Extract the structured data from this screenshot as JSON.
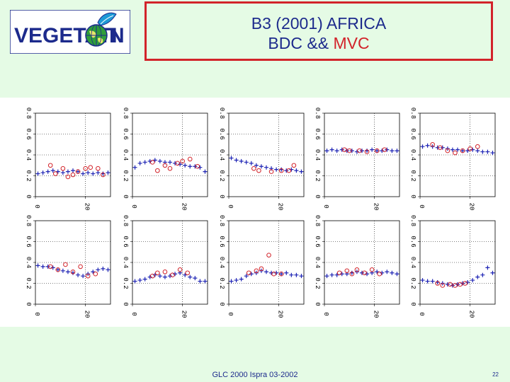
{
  "logo": {
    "text_left": "VEGETATI",
    "text_right": "N"
  },
  "header": {
    "title_line1": "B3 (2001) AFRICA",
    "title_line2_prefix": "BDC && ",
    "title_line2_highlight": "MVC"
  },
  "footer": {
    "left": "GLC 2000 Ispra 03-2002",
    "page_number": "22"
  },
  "colors": {
    "bdc": "#1c22b4",
    "mvc": "#d2232a",
    "title": "#1c2a8c",
    "background": "#e5fbe5"
  },
  "chart_data": {
    "type": "scatter",
    "layout": "2 rows x 5 columns of small panels",
    "y_ticks": [
      "0",
      "0.2",
      "0.4",
      "0.6",
      "0.8"
    ],
    "x_ticks": [
      "0",
      "20"
    ],
    "ylim": [
      0,
      0.8
    ],
    "xlim": [
      0,
      30
    ],
    "series_names": [
      "BDC",
      "MVC"
    ],
    "panels": [
      {
        "bdc": [
          [
            1,
            0.22
          ],
          [
            3,
            0.23
          ],
          [
            5,
            0.24
          ],
          [
            7,
            0.25
          ],
          [
            9,
            0.24
          ],
          [
            11,
            0.23
          ],
          [
            13,
            0.24
          ],
          [
            15,
            0.25
          ],
          [
            17,
            0.24
          ],
          [
            19,
            0.22
          ],
          [
            21,
            0.23
          ],
          [
            23,
            0.22
          ],
          [
            25,
            0.23
          ],
          [
            27,
            0.22
          ],
          [
            29,
            0.23
          ]
        ],
        "mvc": [
          [
            6,
            0.3
          ],
          [
            8,
            0.22
          ],
          [
            11,
            0.27
          ],
          [
            13,
            0.19
          ],
          [
            15,
            0.21
          ],
          [
            17,
            0.24
          ],
          [
            20,
            0.27
          ],
          [
            22,
            0.28
          ],
          [
            25,
            0.27
          ],
          [
            27,
            0.21
          ]
        ]
      },
      {
        "bdc": [
          [
            1,
            0.28
          ],
          [
            3,
            0.32
          ],
          [
            5,
            0.33
          ],
          [
            7,
            0.34
          ],
          [
            9,
            0.35
          ],
          [
            11,
            0.34
          ],
          [
            13,
            0.33
          ],
          [
            15,
            0.33
          ],
          [
            17,
            0.32
          ],
          [
            19,
            0.31
          ],
          [
            21,
            0.3
          ],
          [
            23,
            0.29
          ],
          [
            25,
            0.29
          ],
          [
            27,
            0.28
          ],
          [
            29,
            0.24
          ]
        ],
        "mvc": [
          [
            8,
            0.33
          ],
          [
            10,
            0.25
          ],
          [
            13,
            0.3
          ],
          [
            15,
            0.27
          ],
          [
            18,
            0.32
          ],
          [
            20,
            0.34
          ],
          [
            23,
            0.36
          ],
          [
            26,
            0.29
          ]
        ]
      },
      {
        "bdc": [
          [
            1,
            0.37
          ],
          [
            3,
            0.35
          ],
          [
            5,
            0.34
          ],
          [
            7,
            0.33
          ],
          [
            9,
            0.32
          ],
          [
            11,
            0.3
          ],
          [
            13,
            0.29
          ],
          [
            15,
            0.28
          ],
          [
            17,
            0.27
          ],
          [
            19,
            0.26
          ],
          [
            21,
            0.26
          ],
          [
            23,
            0.25
          ],
          [
            25,
            0.26
          ],
          [
            27,
            0.25
          ],
          [
            29,
            0.24
          ]
        ],
        "mvc": [
          [
            10,
            0.27
          ],
          [
            12,
            0.25
          ],
          [
            17,
            0.24
          ],
          [
            21,
            0.25
          ],
          [
            24,
            0.25
          ],
          [
            26,
            0.3
          ]
        ]
      },
      {
        "bdc": [
          [
            1,
            0.44
          ],
          [
            3,
            0.45
          ],
          [
            5,
            0.44
          ],
          [
            7,
            0.45
          ],
          [
            9,
            0.44
          ],
          [
            11,
            0.44
          ],
          [
            13,
            0.43
          ],
          [
            15,
            0.44
          ],
          [
            17,
            0.44
          ],
          [
            19,
            0.45
          ],
          [
            21,
            0.44
          ],
          [
            23,
            0.44
          ],
          [
            25,
            0.45
          ],
          [
            27,
            0.44
          ],
          [
            29,
            0.44
          ]
        ],
        "mvc": [
          [
            8,
            0.45
          ],
          [
            10,
            0.44
          ],
          [
            14,
            0.44
          ],
          [
            17,
            0.43
          ],
          [
            21,
            0.44
          ],
          [
            24,
            0.45
          ]
        ]
      },
      {
        "bdc": [
          [
            1,
            0.48
          ],
          [
            3,
            0.49
          ],
          [
            5,
            0.48
          ],
          [
            7,
            0.47
          ],
          [
            9,
            0.47
          ],
          [
            11,
            0.46
          ],
          [
            13,
            0.45
          ],
          [
            15,
            0.45
          ],
          [
            17,
            0.44
          ],
          [
            19,
            0.44
          ],
          [
            21,
            0.45
          ],
          [
            23,
            0.44
          ],
          [
            25,
            0.43
          ],
          [
            27,
            0.43
          ],
          [
            29,
            0.42
          ]
        ],
        "mvc": [
          [
            5,
            0.5
          ],
          [
            8,
            0.47
          ],
          [
            11,
            0.44
          ],
          [
            14,
            0.42
          ],
          [
            17,
            0.44
          ],
          [
            20,
            0.46
          ],
          [
            23,
            0.48
          ]
        ]
      },
      {
        "bdc": [
          [
            1,
            0.37
          ],
          [
            3,
            0.36
          ],
          [
            5,
            0.36
          ],
          [
            7,
            0.35
          ],
          [
            9,
            0.33
          ],
          [
            11,
            0.32
          ],
          [
            13,
            0.31
          ],
          [
            15,
            0.3
          ],
          [
            17,
            0.28
          ],
          [
            19,
            0.27
          ],
          [
            21,
            0.29
          ],
          [
            23,
            0.31
          ],
          [
            25,
            0.33
          ],
          [
            27,
            0.34
          ],
          [
            29,
            0.33
          ]
        ],
        "mvc": [
          [
            6,
            0.36
          ],
          [
            9,
            0.33
          ],
          [
            12,
            0.38
          ],
          [
            15,
            0.31
          ],
          [
            18,
            0.36
          ],
          [
            21,
            0.27
          ],
          [
            24,
            0.29
          ]
        ]
      },
      {
        "bdc": [
          [
            1,
            0.22
          ],
          [
            3,
            0.23
          ],
          [
            5,
            0.24
          ],
          [
            7,
            0.26
          ],
          [
            9,
            0.28
          ],
          [
            11,
            0.27
          ],
          [
            13,
            0.26
          ],
          [
            15,
            0.27
          ],
          [
            17,
            0.29
          ],
          [
            19,
            0.3
          ],
          [
            21,
            0.28
          ],
          [
            23,
            0.26
          ],
          [
            25,
            0.25
          ],
          [
            27,
            0.22
          ],
          [
            29,
            0.22
          ]
        ],
        "mvc": [
          [
            8,
            0.27
          ],
          [
            10,
            0.3
          ],
          [
            13,
            0.31
          ],
          [
            16,
            0.28
          ],
          [
            19,
            0.33
          ],
          [
            22,
            0.3
          ]
        ]
      },
      {
        "bdc": [
          [
            1,
            0.22
          ],
          [
            3,
            0.23
          ],
          [
            5,
            0.24
          ],
          [
            7,
            0.27
          ],
          [
            9,
            0.29
          ],
          [
            11,
            0.3
          ],
          [
            13,
            0.32
          ],
          [
            15,
            0.31
          ],
          [
            17,
            0.3
          ],
          [
            19,
            0.3
          ],
          [
            21,
            0.29
          ],
          [
            23,
            0.3
          ],
          [
            25,
            0.28
          ],
          [
            27,
            0.28
          ],
          [
            29,
            0.27
          ]
        ],
        "mvc": [
          [
            8,
            0.3
          ],
          [
            11,
            0.32
          ],
          [
            13,
            0.34
          ],
          [
            16,
            0.47
          ],
          [
            18,
            0.29
          ],
          [
            21,
            0.29
          ]
        ]
      },
      {
        "bdc": [
          [
            1,
            0.27
          ],
          [
            3,
            0.28
          ],
          [
            5,
            0.28
          ],
          [
            7,
            0.29
          ],
          [
            9,
            0.29
          ],
          [
            11,
            0.3
          ],
          [
            13,
            0.31
          ],
          [
            15,
            0.3
          ],
          [
            17,
            0.29
          ],
          [
            19,
            0.3
          ],
          [
            21,
            0.31
          ],
          [
            23,
            0.3
          ],
          [
            25,
            0.31
          ],
          [
            27,
            0.3
          ],
          [
            29,
            0.29
          ]
        ],
        "mvc": [
          [
            6,
            0.3
          ],
          [
            9,
            0.32
          ],
          [
            11,
            0.29
          ],
          [
            13,
            0.33
          ],
          [
            16,
            0.3
          ],
          [
            19,
            0.33
          ],
          [
            22,
            0.29
          ]
        ]
      },
      {
        "bdc": [
          [
            1,
            0.23
          ],
          [
            3,
            0.22
          ],
          [
            5,
            0.22
          ],
          [
            7,
            0.21
          ],
          [
            9,
            0.2
          ],
          [
            11,
            0.19
          ],
          [
            13,
            0.18
          ],
          [
            15,
            0.19
          ],
          [
            17,
            0.2
          ],
          [
            19,
            0.21
          ],
          [
            21,
            0.23
          ],
          [
            23,
            0.26
          ],
          [
            25,
            0.28
          ],
          [
            27,
            0.35
          ],
          [
            29,
            0.3
          ]
        ],
        "mvc": [
          [
            7,
            0.2
          ],
          [
            9,
            0.18
          ],
          [
            12,
            0.19
          ],
          [
            14,
            0.18
          ],
          [
            16,
            0.19
          ],
          [
            18,
            0.2
          ]
        ]
      }
    ]
  }
}
